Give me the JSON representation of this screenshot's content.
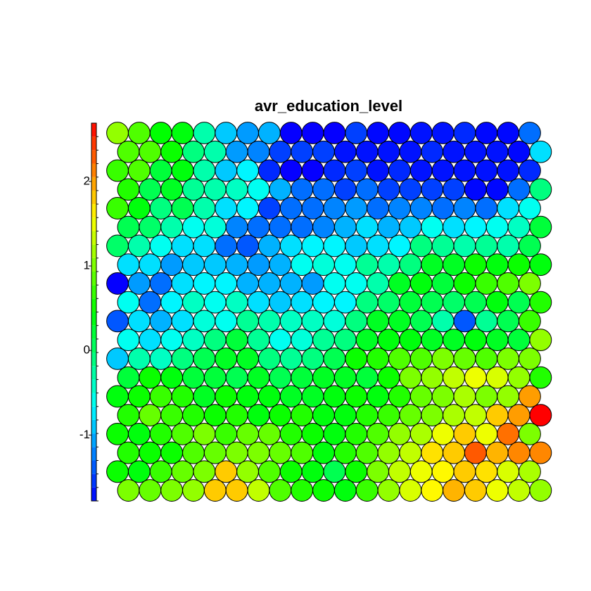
{
  "chart_data": {
    "type": "som",
    "title": "avr_education_level",
    "ylim": [
      -1.78,
      2.69
    ],
    "yticks": [
      -1,
      0,
      1,
      2
    ],
    "values": [
      [
        1.1,
        0.8,
        0.45,
        0.4,
        -0.3,
        -0.9,
        -1.1,
        -1.0,
        -1.8,
        -1.8,
        -1.8,
        -1.5,
        -1.75,
        -1.75,
        -1.7,
        -1.7,
        -1.6,
        -1.75,
        -1.75,
        -1.3
      ],
      [
        0.8,
        0.8,
        0.5,
        -0.1,
        -0.3,
        -1.1,
        -1.2,
        -1.5,
        -1.5,
        -1.5,
        -1.7,
        -1.7,
        -1.7,
        -1.7,
        -1.6,
        -1.7,
        -1.7,
        -1.7,
        -1.75,
        -0.8
      ],
      [
        0.7,
        0.8,
        0.2,
        0.4,
        -0.3,
        -0.9,
        -0.7,
        -1.6,
        -1.8,
        -1.8,
        -1.6,
        -1.5,
        -1.7,
        -1.6,
        -1.7,
        -1.7,
        -1.7,
        -1.7,
        -1.7,
        -1.6
      ],
      [
        0.6,
        0.1,
        0.3,
        -0.2,
        -0.3,
        -0.4,
        -0.6,
        -1.0,
        -1.3,
        -1.3,
        -1.5,
        -1.3,
        -1.5,
        -1.5,
        -1.5,
        -1.5,
        -1.75,
        -1.75,
        -1.3,
        -0.1
      ],
      [
        0.7,
        0.4,
        -0.1,
        0.1,
        -0.3,
        -0.8,
        -0.7,
        -1.5,
        -1.3,
        -1.3,
        -1.2,
        -1.1,
        -1.3,
        -1.2,
        -1.2,
        -1.3,
        -1.2,
        -1.3,
        -0.8,
        -0.6
      ],
      [
        0.1,
        0.0,
        -0.3,
        -0.6,
        -0.5,
        -1.2,
        -1.3,
        -1.3,
        -1.3,
        -1.2,
        -1.0,
        -0.8,
        -1.0,
        -0.9,
        -0.6,
        -0.8,
        -0.7,
        -0.6,
        -0.4,
        0.2
      ],
      [
        0.0,
        -0.3,
        -0.6,
        -0.8,
        -0.8,
        -1.3,
        -1.4,
        -1.0,
        -0.8,
        -0.7,
        -0.7,
        -0.9,
        -0.8,
        -0.7,
        -0.1,
        -0.2,
        -0.3,
        -0.2,
        -0.3,
        0.1
      ],
      [
        -0.8,
        -0.8,
        -1.1,
        -0.9,
        -0.9,
        -1.0,
        -1.1,
        -1.0,
        -0.6,
        -0.5,
        -0.6,
        -0.2,
        -0.3,
        -0.1,
        0.3,
        0.3,
        0.5,
        0.4,
        0.5,
        0.4
      ],
      [
        -1.8,
        -1.1,
        -1.3,
        -0.8,
        -0.7,
        -0.7,
        -1.0,
        -1.0,
        -1.0,
        -1.1,
        -0.6,
        -0.6,
        -0.3,
        0.3,
        0.4,
        0.2,
        0.5,
        0.7,
        0.8,
        1.0
      ],
      [
        -0.6,
        -1.3,
        -0.7,
        -0.4,
        -0.6,
        -0.4,
        -0.8,
        -0.9,
        -0.8,
        -0.7,
        -0.7,
        -0.1,
        0.0,
        0.2,
        0.1,
        0.0,
        0.1,
        0.4,
        0.1,
        0.6
      ],
      [
        -1.4,
        -0.8,
        -1.0,
        -0.8,
        -0.5,
        -0.6,
        -0.2,
        -0.3,
        -0.4,
        -0.4,
        -0.5,
        -0.1,
        0.3,
        0.3,
        0.1,
        -0.3,
        -1.4,
        -0.2,
        0.1,
        0.7
      ],
      [
        -0.6,
        -0.8,
        -0.6,
        -0.4,
        -0.1,
        0.2,
        -0.2,
        -0.6,
        -0.5,
        -0.2,
        -0.1,
        0.3,
        0.4,
        0.4,
        0.3,
        0.3,
        0.4,
        0.3,
        0.2,
        1.1
      ],
      [
        -0.9,
        -0.3,
        -0.4,
        -0.1,
        0.1,
        0.3,
        0.3,
        -0.1,
        -0.2,
        -0.1,
        0.1,
        0.5,
        0.6,
        0.8,
        0.8,
        1.0,
        0.9,
        0.8,
        1.0,
        1.0
      ],
      [
        0.2,
        0.5,
        0.4,
        0.2,
        0.2,
        0.1,
        0.3,
        0.1,
        0.2,
        0.3,
        0.3,
        0.2,
        0.5,
        1.0,
        1.1,
        1.3,
        1.5,
        1.4,
        1.1,
        0.6
      ],
      [
        0.4,
        0.5,
        0.7,
        0.6,
        0.3,
        0.5,
        0.4,
        0.4,
        0.3,
        0.3,
        0.4,
        0.5,
        0.4,
        0.6,
        0.9,
        1.0,
        1.2,
        1.0,
        1.1,
        2.0
      ],
      [
        0.6,
        0.9,
        0.7,
        0.6,
        0.5,
        0.6,
        0.4,
        0.5,
        0.6,
        0.4,
        0.4,
        0.6,
        0.7,
        0.9,
        1.0,
        1.2,
        1.3,
        1.8,
        2.0,
        2.69
      ],
      [
        0.5,
        0.4,
        0.6,
        0.8,
        1.0,
        0.7,
        0.9,
        0.9,
        0.6,
        0.5,
        0.4,
        0.6,
        0.8,
        1.1,
        1.2,
        1.5,
        1.8,
        1.5,
        2.2,
        1.0
      ],
      [
        0.6,
        0.5,
        0.5,
        0.8,
        0.9,
        1.0,
        1.0,
        0.9,
        0.8,
        0.4,
        0.6,
        0.8,
        1.1,
        1.3,
        1.7,
        1.8,
        2.3,
        1.9,
        2.1,
        2.1
      ],
      [
        0.5,
        0.4,
        0.7,
        0.9,
        1.0,
        1.8,
        1.1,
        0.8,
        0.5,
        0.4,
        0.1,
        0.5,
        1.0,
        1.3,
        1.5,
        1.6,
        1.8,
        1.7,
        1.4,
        1.2
      ],
      [
        1.0,
        0.9,
        1.0,
        1.1,
        1.8,
        1.8,
        1.3,
        0.8,
        0.6,
        0.5,
        0.4,
        0.7,
        1.1,
        1.4,
        1.6,
        1.9,
        1.8,
        1.5,
        1.3,
        1.1
      ]
    ]
  }
}
